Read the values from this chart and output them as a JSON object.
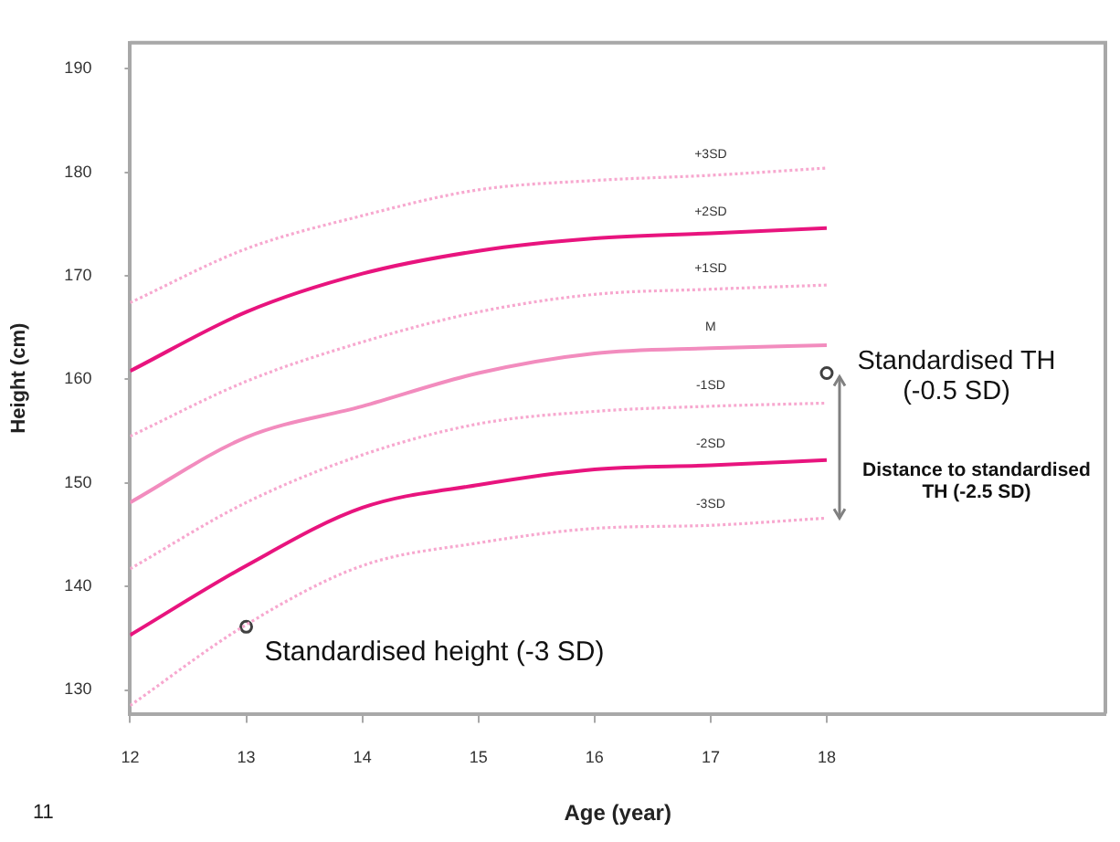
{
  "chart_data": {
    "type": "line",
    "xlabel": "Age (year)",
    "ylabel": "Height (cm)",
    "x": [
      12,
      13,
      14,
      15,
      16,
      17,
      18
    ],
    "xlim": [
      12,
      20.4
    ],
    "xticks": [
      12,
      13,
      14,
      15,
      16,
      17,
      18
    ],
    "ylim": [
      127.7,
      192.5
    ],
    "yticks": [
      130,
      140,
      150,
      160,
      170,
      180,
      190
    ],
    "grid": false,
    "legend": false,
    "marker": "none",
    "series": [
      {
        "name": "+3SD",
        "color": "#f7a8cf",
        "line_style": "dotted",
        "values": [
          167.4,
          172.6,
          175.8,
          178.3,
          179.2,
          179.7,
          180.4
        ]
      },
      {
        "name": "+2SD",
        "color": "#e8147e",
        "line_style": "solid",
        "values": [
          160.8,
          166.5,
          170.2,
          172.4,
          173.6,
          174.1,
          174.6
        ]
      },
      {
        "name": "+1SD",
        "color": "#f7a8cf",
        "line_style": "dotted",
        "values": [
          154.5,
          159.8,
          163.6,
          166.5,
          168.2,
          168.7,
          169.1
        ]
      },
      {
        "name": "M",
        "color": "#f28cbe",
        "line_style": "solid",
        "values": [
          148.1,
          154.4,
          157.4,
          160.6,
          162.5,
          163.0,
          163.3
        ]
      },
      {
        "name": "-1SD",
        "color": "#f7a8cf",
        "line_style": "dotted",
        "values": [
          141.7,
          148.1,
          152.7,
          155.7,
          156.9,
          157.4,
          157.7
        ]
      },
      {
        "name": "-2SD",
        "color": "#e8147e",
        "line_style": "solid",
        "values": [
          135.3,
          142.0,
          147.6,
          149.8,
          151.3,
          151.7,
          152.2
        ]
      },
      {
        "name": "-3SD",
        "color": "#f7a8cf",
        "line_style": "dotted",
        "values": [
          128.5,
          136.3,
          142.0,
          144.2,
          145.6,
          145.9,
          146.6
        ]
      },
      {
        "type": "scatter",
        "color": "#404040",
        "marker": "circle",
        "x": [
          13,
          18
        ],
        "values": [
          136.1,
          160.6
        ]
      }
    ],
    "annotations": [
      "Standardised height (-3 SD)",
      "Standardised TH (-0.5 SD)",
      "Distance to standardised TH (-2.5 SD)",
      "11"
    ]
  }
}
